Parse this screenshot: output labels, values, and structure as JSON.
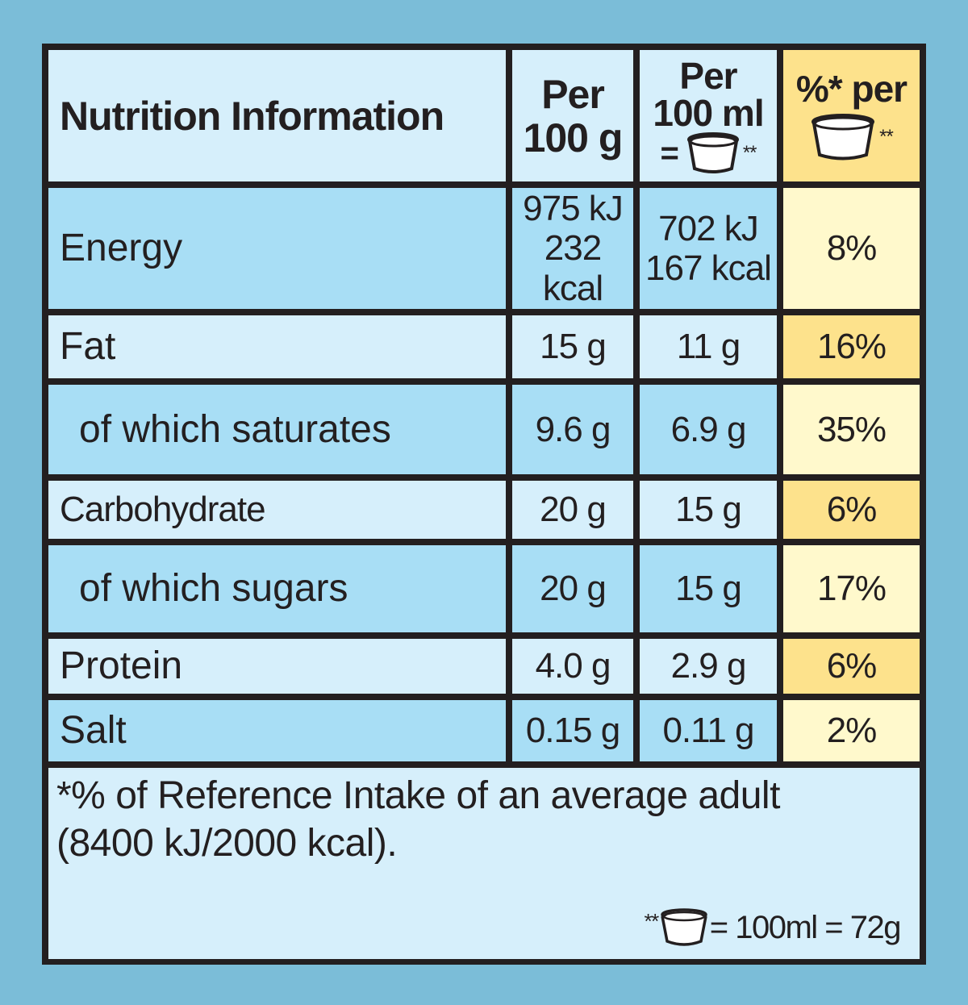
{
  "header": {
    "title": "Nutrition Information",
    "col1_line1": "Per",
    "col1_line2": "100 g",
    "col2_line1": "Per",
    "col2_line2": "100 ml",
    "col2_eq": "=",
    "col2_stars": "**",
    "col3_line1": "%* per",
    "col3_stars": "**",
    "icon": "tub-icon"
  },
  "rows": [
    {
      "name": "Energy",
      "per100g": [
        "975 kJ",
        "232 kcal"
      ],
      "per100ml": [
        "702 kJ",
        "167 kcal"
      ],
      "ri": "8%"
    },
    {
      "name": "Fat",
      "per100g": [
        "15 g"
      ],
      "per100ml": [
        "11 g"
      ],
      "ri": "16%"
    },
    {
      "name": "of which saturates",
      "per100g": [
        "9.6 g"
      ],
      "per100ml": [
        "6.9 g"
      ],
      "ri": "35%"
    },
    {
      "name": "Carbohydrate",
      "per100g": [
        "20 g"
      ],
      "per100ml": [
        "15 g"
      ],
      "ri": "6%"
    },
    {
      "name": "of which sugars",
      "per100g": [
        "20 g"
      ],
      "per100ml": [
        "15 g"
      ],
      "ri": "17%"
    },
    {
      "name": "Protein",
      "per100g": [
        "4.0 g"
      ],
      "per100ml": [
        "2.9 g"
      ],
      "ri": "6%"
    },
    {
      "name": "Salt",
      "per100g": [
        "0.15 g"
      ],
      "per100ml": [
        "0.11 g"
      ],
      "ri": "2%"
    }
  ],
  "footer": {
    "line1": "*% of Reference Intake of an average adult",
    "line2": "(8400 kJ/2000 kcal).",
    "note_stars": "**",
    "note_text": "= 100ml = 72g"
  },
  "colors": {
    "background": "#7bbdd8",
    "light_blue": "#d6effb",
    "mid_blue": "#a8def5",
    "cream": "#fff9cc",
    "gold": "#fde28c",
    "border": "#231f20"
  }
}
